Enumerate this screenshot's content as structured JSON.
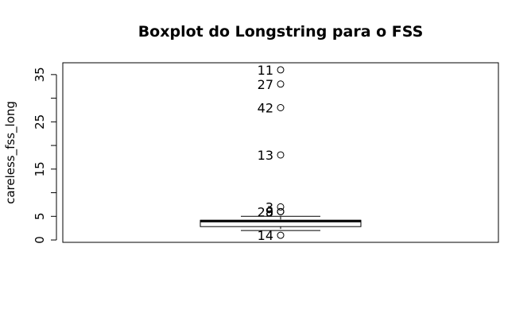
{
  "chart_data": {
    "type": "boxplot",
    "title": "Boxplot do Longstring para o FSS",
    "xlabel": "",
    "ylabel": "careless_fss_long",
    "ylim": [
      -0.5,
      37.5
    ],
    "yticks": [
      0,
      5,
      15,
      25,
      35
    ],
    "yticks_minor": [
      10,
      20,
      30
    ],
    "grid": false,
    "box": {
      "min": 2,
      "q1": 3,
      "median": 4,
      "q3": 4,
      "max": 5
    },
    "outliers": [
      {
        "label": "11",
        "value": 36
      },
      {
        "label": "27",
        "value": 33
      },
      {
        "label": "42",
        "value": 28
      },
      {
        "label": "13",
        "value": 18
      },
      {
        "label": "3",
        "value": 7
      },
      {
        "label": "9",
        "value": 6
      },
      {
        "label": "29",
        "value": 6
      },
      {
        "label": "8",
        "value": 6
      },
      {
        "label": "14",
        "value": 1
      }
    ]
  }
}
